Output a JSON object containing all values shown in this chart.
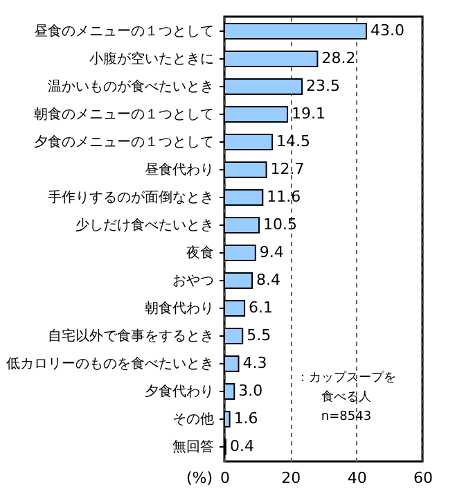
{
  "chart_data": {
    "type": "bar",
    "orientation": "horizontal",
    "categories": [
      "昼食のメニューの１つとして",
      "小腹が空いたときに",
      "温かいものが食べたいとき",
      "朝食のメニューの１つとして",
      "夕食のメニューの１つとして",
      "昼食代わり",
      "手作りするのが面倒なとき",
      "少しだけ食べたいとき",
      "夜食",
      "おやつ",
      "朝食代わり",
      "自宅以外で食事をするとき",
      "低カロリーのものを食べたいとき",
      "夕食代わり",
      "その他",
      "無回答"
    ],
    "values": [
      43.0,
      28.2,
      23.5,
      19.1,
      14.5,
      12.7,
      11.6,
      10.5,
      9.4,
      8.4,
      6.1,
      5.5,
      4.3,
      3.0,
      1.6,
      0.4
    ],
    "value_labels": [
      "43.0",
      "28.2",
      "23.5",
      "19.1",
      "14.5",
      "12.7",
      "11.6",
      "10.5",
      "9.4",
      "8.4",
      "6.1",
      "5.5",
      "4.3",
      "3.0",
      "1.6",
      "0.4"
    ],
    "color": "#99ccff",
    "xlim": [
      0,
      60
    ],
    "xticks": [
      0,
      20,
      40,
      60
    ],
    "xlabel": "(%)",
    "grid": "x",
    "annotations": [
      "：カップスープを食べる人",
      "n=8543"
    ]
  }
}
